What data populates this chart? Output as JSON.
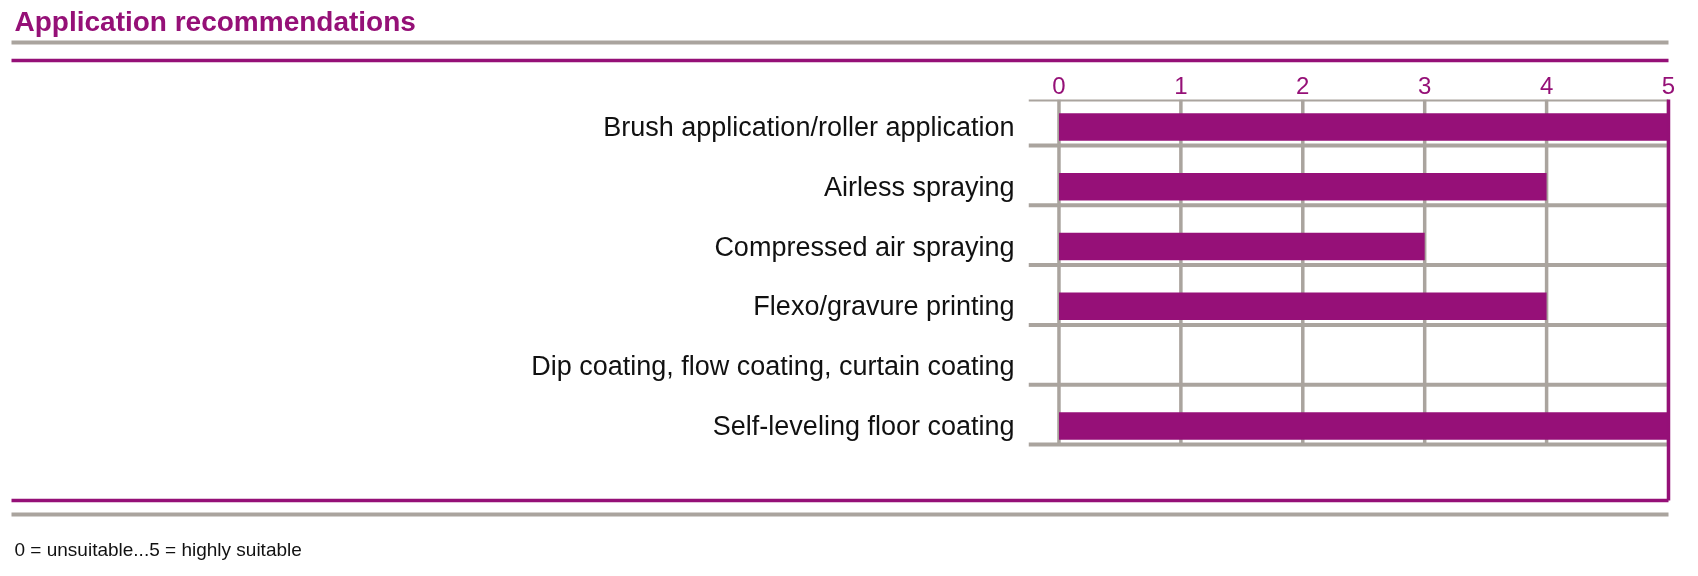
{
  "chart_data": {
    "type": "bar",
    "orientation": "horizontal",
    "title": "Application recommendations",
    "categories": [
      "Brush application/roller application",
      "Airless spraying",
      "Compressed air spraying",
      "Flexo/gravure printing",
      "Dip coating, flow coating, curtain coating",
      "Self-leveling floor coating"
    ],
    "values": [
      5,
      4,
      3,
      4,
      0,
      5
    ],
    "color": "#961078",
    "xlim": [
      -0.25,
      5
    ],
    "xticks": [
      0,
      1,
      2,
      3,
      4,
      5
    ],
    "grid": true,
    "annotations": [
      "0 = unsuitable...5 = highly suitable"
    ]
  }
}
